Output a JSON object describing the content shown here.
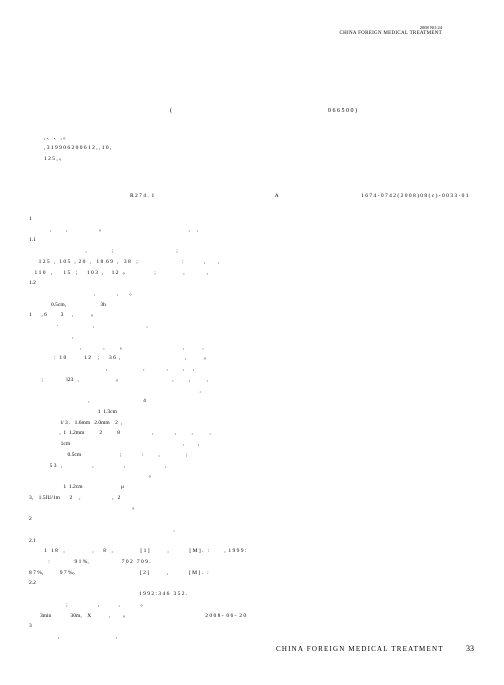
{
  "header": {
    "issue": "2008  NO.24",
    "journal_en": "CHINA  FOREIGN  MEDICAL  TREATMENT"
  },
  "paren_open": "(",
  "postal": "0 6 6 5 0 0 )",
  "abstract_line1": "            ,         、       、             ,                                    。",
  "abstract_line2": "   , 3                                          1 9 9 0    6       2 0 0 6    1 2 ,                 ,   1 0         ,",
  "abstract_line3": "                                  1 2 5   ,                  。",
  "class_left": "R 2 7 4 .  1",
  "class_mid": "A",
  "class_right": "1 6 7 4 - 0 7 4 2 ( 2 0 0 8 ) 0 8 ( c ) - 0 0 3 3 - 0 1",
  "body_lines": [
    "1",
    "               ,           ,                       。                                                             ,     ,",
    "1.1",
    "                                         ,                  ;                                              ;",
    "       1 2 5   ,   1 0 5   ,  2 0   ,    1 8  6 9   ,    3 8    ;                                :               ,         ,",
    "    1 1 0    ,        1 5    ;       1 0 3   ,      1 2   。                   ;                    ,                ,",
    "1.2",
    "                                               ,                ,        。",
    "                0.5cm,                         3h",
    "1       , 6          3      ,             。",
    "                    ·                         ,                                      ,",
    "                               ,",
    "                                     ,                ,           。                                          ,             ,",
    "                  :   1 0             1 2     ;       3 6  ,                                               ,             。",
    "                                                        ,                          ,                ,           ,      ,",
    "         ;                 l23   ,                           。                                     ,           ,            ,",
    "                                                                                                                            ,",
    "                                           ,                                       4",
    "                                                  1  1.3cm",
    "                       l/ 3 .   1.6mm   2.0mm    2  ,",
    "                      ,  1  1.2mm           2           8                       ,                ,           ,            ,",
    "                       1cm                                                                                  ,          ,",
    "                            0.5cm                            ;               :           ,                   ;",
    "               5 3   ,                      ,                      ,                             ,",
    "                                                                                       。",
    "                         1  1.2cm                            &mu;",
    "3,    1.5IU/1m       2     ,                       ,   2",
    "                                                                           。",
    "2",
    "                                                                                                         ,",
    "2.1",
    "           1   1 8    ,                    ,       8    ,                    [ 1 ]             ,               [ M ] .   :           ,  1 9 9 9 :",
    "              :                  9 1 %,                        7 0 2   7 0 9 .",
    "8 7 %,            9 7 %。                                             [ 2 ]             ,               [ M ] .   :",
    "2.2",
    "                                                                                1 9 9 2 : 3 4 6   3 5 2 .",
    "                           ;                      ,              ,               。",
    "        3min              30m,    X             ,         。                                                        2 0 0 8 -  0 6 -  2 0",
    "",
    "3",
    "                     ,                                         ,"
  ],
  "footer": {
    "journal": "CHINA  FOREIGN  MEDICAL  TREATMENT",
    "page": "33"
  }
}
